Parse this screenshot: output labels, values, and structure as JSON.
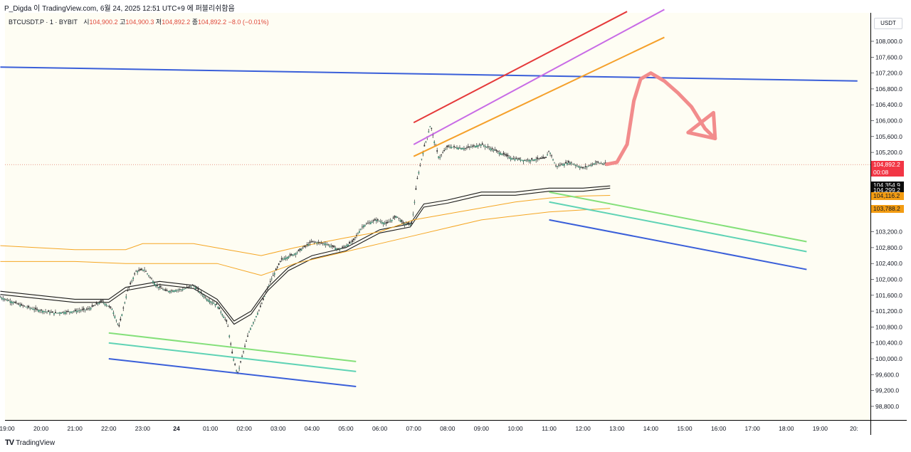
{
  "header": {
    "publish_line": "P_Digda 이 TradingView.com, 6월 24, 2025 12:51 UTC+9 에 퍼블리쉬함음"
  },
  "legend": {
    "symbol": "BTCUSDT.P · 1 · BYBIT",
    "open_label": "시",
    "open": "104,900.2",
    "high_label": "고",
    "high": "104,900.3",
    "low_label": "저",
    "low": "104,892.2",
    "close_label": "종",
    "close": "104,892.2",
    "change": "−8.0 (−0.01%)"
  },
  "currency_button": "USDT",
  "brand": {
    "name": "TradingView"
  },
  "colors": {
    "plot_bg": "#fefdf3",
    "candle": "#2f2f2f",
    "candle_up": "#3a8f74",
    "ma_black": "#1b1b1b",
    "ma_orange": "#f5a623",
    "red_badge": "#f23645",
    "arrow": "#f28c8c"
  },
  "chart_data": {
    "type": "candlestick",
    "y_axis": {
      "min": 98600,
      "max": 108600,
      "tick_labels": [
        "108,000.0",
        "107,600.0",
        "107,200.0",
        "106,800.0",
        "106,400.0",
        "106,000.0",
        "105,600.0",
        "105,200.0",
        "103,200.0",
        "102,800.0",
        "102,400.0",
        "102,000.0",
        "101,600.0",
        "101,200.0",
        "100,800.0",
        "100,400.0",
        "100,000.0",
        "99,600.0",
        "99,200.0",
        "98,800.0"
      ],
      "tick_values": [
        108000,
        107600,
        107200,
        106800,
        106400,
        106000,
        105600,
        105200,
        103200,
        102800,
        102400,
        102000,
        101600,
        101200,
        100800,
        100400,
        100000,
        99600,
        99200,
        98800
      ]
    },
    "x_axis": {
      "labels": [
        "19:00",
        "20:00",
        "21:00",
        "22:00",
        "23:00",
        "24",
        "01:00",
        "02:00",
        "03:00",
        "04:00",
        "05:00",
        "06:00",
        "07:00",
        "08:00",
        "09:00",
        "10:00",
        "11:00",
        "12:00",
        "13:00",
        "14:00",
        "15:00",
        "16:00",
        "17:00",
        "18:00",
        "19:00",
        "20:"
      ],
      "hours": [
        -5,
        -4,
        -3,
        -2,
        -1,
        0,
        1,
        2,
        3,
        4,
        5,
        6,
        7,
        8,
        9,
        10,
        11,
        12,
        13,
        14,
        15,
        16,
        17,
        18,
        19,
        20
      ]
    },
    "price_path": [
      [
        -5.2,
        101550
      ],
      [
        -4.6,
        101350
      ],
      [
        -4.2,
        101250
      ],
      [
        -3.6,
        101150
      ],
      [
        -3.0,
        101200
      ],
      [
        -2.6,
        101250
      ],
      [
        -2.2,
        101450
      ],
      [
        -1.9,
        101250
      ],
      [
        -1.7,
        100800
      ],
      [
        -1.45,
        101700
      ],
      [
        -1.2,
        102200
      ],
      [
        -0.95,
        102250
      ],
      [
        -0.6,
        101850
      ],
      [
        -0.3,
        101700
      ],
      [
        0.2,
        101750
      ],
      [
        0.5,
        101850
      ],
      [
        0.9,
        101500
      ],
      [
        1.2,
        101350
      ],
      [
        1.5,
        100900
      ],
      [
        1.65,
        100100
      ],
      [
        1.8,
        99600
      ],
      [
        1.95,
        100100
      ],
      [
        2.15,
        100700
      ],
      [
        2.5,
        101350
      ],
      [
        2.8,
        102000
      ],
      [
        3.1,
        102500
      ],
      [
        3.5,
        102650
      ],
      [
        4.0,
        102950
      ],
      [
        4.4,
        102900
      ],
      [
        4.8,
        102750
      ],
      [
        5.2,
        102950
      ],
      [
        5.5,
        103350
      ],
      [
        5.9,
        103500
      ],
      [
        6.2,
        103400
      ],
      [
        6.5,
        103600
      ],
      [
        6.7,
        103400
      ],
      [
        6.95,
        103400
      ],
      [
        7.1,
        104500
      ],
      [
        7.3,
        105300
      ],
      [
        7.5,
        105900
      ],
      [
        7.6,
        105500
      ],
      [
        7.75,
        105050
      ],
      [
        8.0,
        105350
      ],
      [
        8.5,
        105300
      ],
      [
        9.0,
        105400
      ],
      [
        9.4,
        105250
      ],
      [
        9.9,
        105050
      ],
      [
        10.3,
        105000
      ],
      [
        10.9,
        105050
      ],
      [
        11.0,
        105250
      ],
      [
        11.2,
        104850
      ],
      [
        11.6,
        104950
      ],
      [
        12.0,
        104800
      ],
      [
        12.4,
        104950
      ],
      [
        12.7,
        104892
      ]
    ],
    "moving_averages": [
      {
        "color": "#1b1b1b",
        "points": [
          [
            -5.2,
            101700
          ],
          [
            -3,
            101500
          ],
          [
            -2,
            101500
          ],
          [
            -1.5,
            101800
          ],
          [
            -0.5,
            101950
          ],
          [
            0.5,
            101850
          ],
          [
            1.2,
            101500
          ],
          [
            1.7,
            100950
          ],
          [
            2.2,
            101200
          ],
          [
            2.7,
            101800
          ],
          [
            3.3,
            102300
          ],
          [
            4,
            102600
          ],
          [
            5,
            102800
          ],
          [
            6,
            103250
          ],
          [
            6.9,
            103400
          ],
          [
            7.3,
            103900
          ],
          [
            8,
            104000
          ],
          [
            9,
            104200
          ],
          [
            10,
            104200
          ],
          [
            11,
            104300
          ],
          [
            12,
            104300
          ],
          [
            12.8,
            104355
          ]
        ]
      },
      {
        "color": "#1b1b1b",
        "points": [
          [
            -5.2,
            101620
          ],
          [
            -3,
            101420
          ],
          [
            -2,
            101420
          ],
          [
            -1.5,
            101720
          ],
          [
            -0.5,
            101870
          ],
          [
            0.5,
            101770
          ],
          [
            1.2,
            101420
          ],
          [
            1.7,
            100870
          ],
          [
            2.2,
            101120
          ],
          [
            2.7,
            101720
          ],
          [
            3.3,
            102220
          ],
          [
            4,
            102520
          ],
          [
            5,
            102720
          ],
          [
            6,
            103170
          ],
          [
            6.9,
            103320
          ],
          [
            7.3,
            103820
          ],
          [
            8,
            103920
          ],
          [
            9,
            104120
          ],
          [
            10,
            104120
          ],
          [
            11,
            104220
          ],
          [
            12,
            104220
          ],
          [
            12.8,
            104299
          ]
        ]
      },
      {
        "color": "#f5a623",
        "points": [
          [
            -5.2,
            102850
          ],
          [
            -3,
            102750
          ],
          [
            -1.5,
            102750
          ],
          [
            -1,
            102900
          ],
          [
            0.5,
            102900
          ],
          [
            1.5,
            102750
          ],
          [
            2.5,
            102600
          ],
          [
            3.5,
            102800
          ],
          [
            5,
            103050
          ],
          [
            6,
            103200
          ],
          [
            7,
            103500
          ],
          [
            8,
            103650
          ],
          [
            9,
            103800
          ],
          [
            10,
            103950
          ],
          [
            11,
            104050
          ],
          [
            12,
            104100
          ],
          [
            12.8,
            104116
          ]
        ]
      },
      {
        "color": "#f5a623",
        "points": [
          [
            -5.2,
            102450
          ],
          [
            -3,
            102450
          ],
          [
            -1.5,
            102400
          ],
          [
            1.2,
            102400
          ],
          [
            2.5,
            102100
          ],
          [
            3.5,
            102400
          ],
          [
            5,
            102700
          ],
          [
            6,
            102900
          ],
          [
            7,
            103100
          ],
          [
            8,
            103300
          ],
          [
            9,
            103500
          ],
          [
            10,
            103600
          ],
          [
            11,
            103700
          ],
          [
            12,
            103750
          ],
          [
            12.8,
            103788
          ]
        ]
      }
    ],
    "trend_lines": [
      {
        "color": "#3a5fd9",
        "from": [
          -5.2,
          107350
        ],
        "to": [
          20.1,
          107000
        ]
      },
      {
        "color": "#e5393a",
        "from": [
          7.0,
          105950
        ],
        "to": [
          13.3,
          108750
        ]
      },
      {
        "color": "#c86be6",
        "from": [
          7.0,
          105400
        ],
        "to": [
          14.4,
          108800
        ]
      },
      {
        "color": "#f5a02a",
        "from": [
          7.0,
          105100
        ],
        "to": [
          14.4,
          108100
        ]
      },
      {
        "color": "#84e07a",
        "from": [
          -2.0,
          100650
        ],
        "to": [
          5.3,
          99930
        ]
      },
      {
        "color": "#5fd3b5",
        "from": [
          -2.0,
          100400
        ],
        "to": [
          5.3,
          99680
        ]
      },
      {
        "color": "#3a5fd9",
        "from": [
          -2.0,
          100000
        ],
        "to": [
          5.3,
          99300
        ]
      },
      {
        "color": "#84e07a",
        "from": [
          11.0,
          104200
        ],
        "to": [
          18.6,
          102950
        ]
      },
      {
        "color": "#5fd3b5",
        "from": [
          11.0,
          103950
        ],
        "to": [
          18.6,
          102700
        ]
      },
      {
        "color": "#3a5fd9",
        "from": [
          11.0,
          103500
        ],
        "to": [
          18.6,
          102250
        ]
      }
    ],
    "projection_arrow": {
      "color": "#f28c8c",
      "points": [
        [
          12.7,
          104900
        ],
        [
          13.0,
          104950
        ],
        [
          13.3,
          105400
        ],
        [
          13.5,
          106500
        ],
        [
          13.7,
          107050
        ],
        [
          14.0,
          107200
        ],
        [
          14.4,
          107000
        ],
        [
          14.8,
          106700
        ],
        [
          15.2,
          106350
        ],
        [
          15.6,
          105800
        ],
        [
          15.9,
          105550
        ]
      ],
      "head": [
        [
          15.1,
          105700
        ],
        [
          15.9,
          105550
        ],
        [
          15.85,
          106200
        ]
      ]
    },
    "last_price_line": 104892.2,
    "price_badges": [
      {
        "label": "104,892.2",
        "sub": "00:08",
        "value": 104892.2,
        "bg": "#f23645",
        "fg": "#ffffff"
      },
      {
        "label": "104,354.9",
        "value": 104354.9,
        "bg": "#0c0c0c",
        "fg": "#ffffff"
      },
      {
        "label": "104,299.2",
        "value": 104299.2,
        "bg": "#0c0c0c",
        "fg": "#ffffff"
      },
      {
        "label": "104,116.2",
        "value": 104116.2,
        "bg": "#f39c12",
        "fg": "#131722"
      },
      {
        "label": "103,788.2",
        "value": 103788.2,
        "bg": "#f39c12",
        "fg": "#131722"
      }
    ]
  }
}
